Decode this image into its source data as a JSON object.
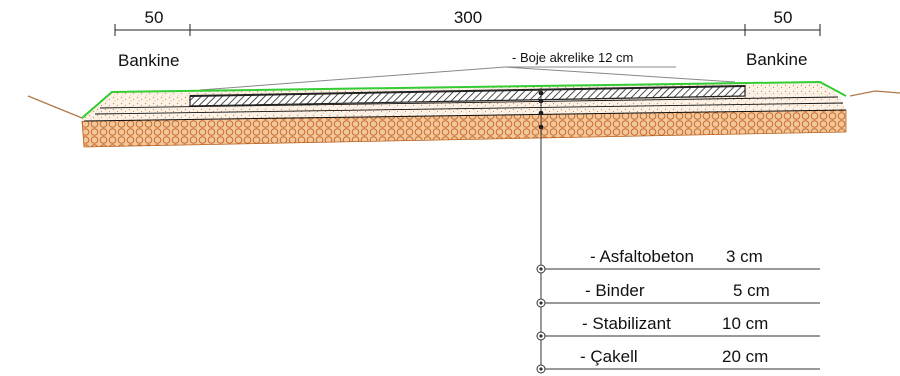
{
  "dimensions": {
    "left_width": "50",
    "center_width": "300",
    "right_width": "50"
  },
  "labels": {
    "left_shoulder": "Bankine",
    "right_shoulder": "Bankine",
    "paint_marking": "- Boje akrelike  12 cm"
  },
  "layers": [
    {
      "name": "- Asfaltobeton",
      "thickness": "3 cm"
    },
    {
      "name": "- Binder",
      "thickness": "5 cm"
    },
    {
      "name": "- Stabilizant",
      "thickness": "10 cm"
    },
    {
      "name": "- Çakell",
      "thickness": "20 cm"
    }
  ],
  "colors": {
    "grass_edge": "#33cc33",
    "sand_fill": "#e8a86a",
    "gravel_fill": "#d9823a",
    "asphalt": "#333333",
    "ground_line": "#b07a4a"
  }
}
